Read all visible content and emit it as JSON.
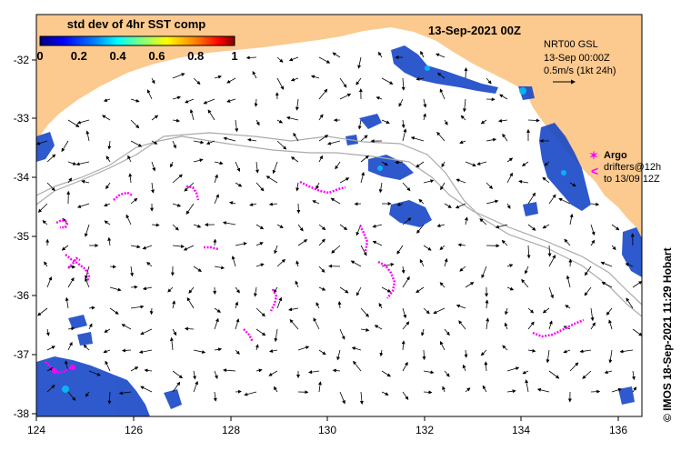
{
  "title": "13-Sep-2021 00Z",
  "colorbar": {
    "label": "std dev of 4hr SST comp",
    "ticks": [
      "0",
      "0.2",
      "0.4",
      "0.6",
      "0.8",
      "1"
    ],
    "colors": [
      "#000080",
      "#0000ff",
      "#0080ff",
      "#00ffff",
      "#80ff80",
      "#ffff00",
      "#ff8000",
      "#ff0000",
      "#800000"
    ]
  },
  "info": {
    "line1": "NRT00 GSL",
    "line2": "13-Sep 00:00Z",
    "line3": "0.5m/s (1kt 24h)"
  },
  "argo_legend": {
    "symbol": "✶",
    "label": "Argo"
  },
  "drifter_legend": {
    "symbol": "<",
    "line1": "drifters@12h",
    "line2": "to 13/09 12Z"
  },
  "credit": "©  IMOS 18-Sep-2021 11:29 Hobart",
  "axes": {
    "lon_ticks": [
      "124",
      "126",
      "128",
      "130",
      "132",
      "134",
      "136"
    ],
    "lat_ticks": [
      "-32",
      "-33",
      "-34",
      "-35",
      "-36",
      "-37",
      "-38"
    ]
  },
  "colors": {
    "land": "#fcc98e",
    "ocean": "#ffffff",
    "drifter": "#ff00ff",
    "contour": "#aaaaaa",
    "sst_patch": "#1040c0"
  }
}
